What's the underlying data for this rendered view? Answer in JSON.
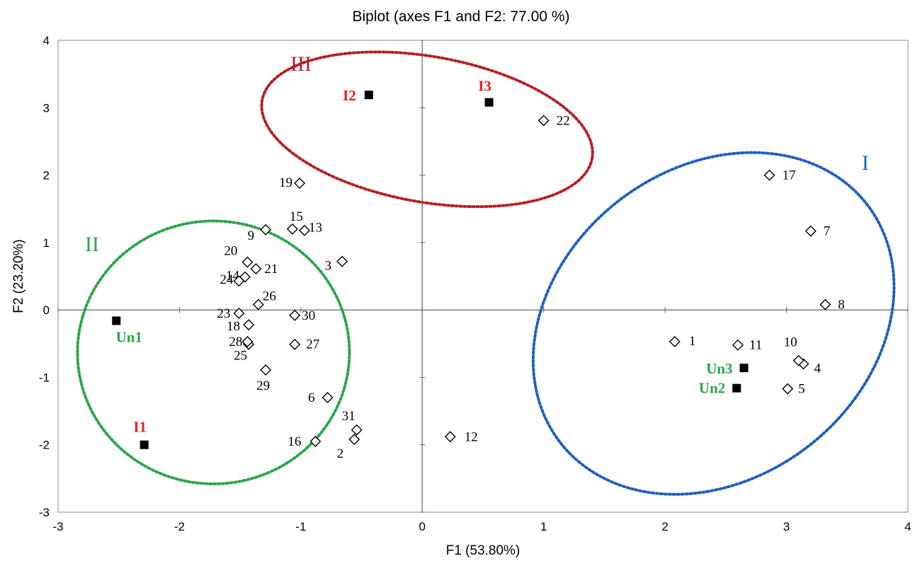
{
  "colors": {
    "group_I": "#1f5fbf",
    "group_II": "#2aa64a",
    "group_III": "#b51f24",
    "ref_red": "#e8201c",
    "ref_green": "#2aa64a"
  },
  "chart_data": {
    "type": "scatter",
    "title": "Biplot (axes F1 and F2: 77.00 %)",
    "xlabel": "F1 (53.80%)",
    "ylabel": "F2 (23.20%)",
    "xlim": [
      -3,
      4
    ],
    "ylim": [
      -3,
      4
    ],
    "x_ticks": [
      "-3",
      "-2",
      "-1",
      "0",
      "1",
      "2",
      "3",
      "4"
    ],
    "y_ticks": [
      "-3",
      "-2",
      "-1",
      "0",
      "1",
      "2",
      "3",
      "4"
    ],
    "grid": false,
    "series": [
      {
        "marker": "diamond-open",
        "points": [
          {
            "label": "1",
            "x": 2.08,
            "y": -0.47
          },
          {
            "label": "2",
            "x": -0.56,
            "y": -1.92
          },
          {
            "label": "3",
            "x": -0.66,
            "y": 0.72
          },
          {
            "label": "4",
            "x": 3.14,
            "y": -0.8
          },
          {
            "label": "5",
            "x": 3.01,
            "y": -1.17
          },
          {
            "label": "6",
            "x": -0.78,
            "y": -1.3
          },
          {
            "label": "7",
            "x": 3.2,
            "y": 1.17
          },
          {
            "label": "8",
            "x": 3.32,
            "y": 0.08
          },
          {
            "label": "9",
            "x": -1.29,
            "y": 1.19
          },
          {
            "label": "10",
            "x": 3.1,
            "y": -0.75
          },
          {
            "label": "11",
            "x": 2.6,
            "y": -0.52
          },
          {
            "label": "12",
            "x": 0.23,
            "y": -1.88
          },
          {
            "label": "13",
            "x": -0.97,
            "y": 1.18
          },
          {
            "label": "14",
            "x": -1.46,
            "y": 0.49
          },
          {
            "label": "15",
            "x": -1.07,
            "y": 1.2
          },
          {
            "label": "16",
            "x": -0.88,
            "y": -1.95
          },
          {
            "label": "17",
            "x": 2.86,
            "y": 2.0
          },
          {
            "label": "18",
            "x": -1.43,
            "y": -0.22
          },
          {
            "label": "19",
            "x": -1.01,
            "y": 1.88
          },
          {
            "label": "20",
            "x": -1.44,
            "y": 0.71
          },
          {
            "label": "21",
            "x": -1.37,
            "y": 0.61
          },
          {
            "label": "22",
            "x": 1.0,
            "y": 2.81
          },
          {
            "label": "23",
            "x": -1.51,
            "y": -0.05
          },
          {
            "label": "24",
            "x": -1.51,
            "y": 0.43
          },
          {
            "label": "25",
            "x": -1.43,
            "y": -0.51
          },
          {
            "label": "26",
            "x": -1.35,
            "y": 0.08
          },
          {
            "label": "27",
            "x": -1.05,
            "y": -0.51
          },
          {
            "label": "28",
            "x": -1.44,
            "y": -0.47
          },
          {
            "label": "29",
            "x": -1.29,
            "y": -0.89
          },
          {
            "label": "30",
            "x": -1.05,
            "y": -0.08
          },
          {
            "label": "31",
            "x": -0.54,
            "y": -1.78
          }
        ]
      },
      {
        "marker": "square-filled",
        "points": [
          {
            "label": "I1",
            "x": -2.29,
            "y": -2.0,
            "color": "#e8201c"
          },
          {
            "label": "I2",
            "x": -0.44,
            "y": 3.19,
            "color": "#e8201c"
          },
          {
            "label": "I3",
            "x": 0.55,
            "y": 3.08,
            "color": "#e8201c"
          },
          {
            "label": "Un1",
            "x": -2.52,
            "y": -0.16,
            "color": "#2aa64a"
          },
          {
            "label": "Un2",
            "x": 2.59,
            "y": -1.16,
            "color": "#2aa64a"
          },
          {
            "label": "Un3",
            "x": 2.65,
            "y": -0.86,
            "color": "#2aa64a"
          }
        ]
      }
    ],
    "groups": [
      {
        "label": "I",
        "color": "#1f5fbf",
        "cx": 2.4,
        "cy": -0.2,
        "rx": 1.6,
        "ry": 2.3,
        "rotation_deg": 38
      },
      {
        "label": "II",
        "color": "#2aa64a",
        "cx": -1.72,
        "cy": -0.63,
        "rx": 1.12,
        "ry": 1.95,
        "rotation_deg": 0
      },
      {
        "label": "III",
        "color": "#b51f24",
        "cx": 0.04,
        "cy": 2.68,
        "rx": 1.38,
        "ry": 1.08,
        "rotation_deg": -10
      }
    ]
  }
}
